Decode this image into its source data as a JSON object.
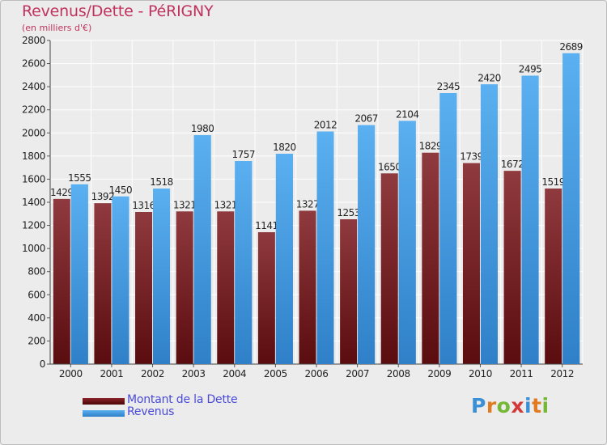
{
  "title": "Revenus/Dette - PéRIGNY",
  "subtitle": "(en milliers d'€)",
  "colors": {
    "debt": "#7a2a2e",
    "revenue": "#4aa3e8",
    "title": "#c0335f",
    "legend_text": "#4a4ad8"
  },
  "legend": [
    {
      "label": "Montant de la Dette",
      "color": "#6e0e10"
    },
    {
      "label": "Revenus",
      "color": "#4aa3e8"
    }
  ],
  "logo": {
    "text": "Proxiti",
    "parts": [
      "P",
      "r",
      "o",
      "x",
      "i",
      "t",
      "i"
    ]
  },
  "chart_data": {
    "type": "bar",
    "title": "Revenus/Dette - PéRIGNY",
    "subtitle": "(en milliers d'€)",
    "categories": [
      "2000",
      "2001",
      "2002",
      "2003",
      "2004",
      "2005",
      "2006",
      "2007",
      "2008",
      "2009",
      "2010",
      "2011",
      "2012"
    ],
    "series": [
      {
        "name": "Montant de la Dette",
        "values": [
          1429,
          1392,
          1316,
          1321,
          1321,
          1141,
          1327,
          1253,
          1650,
          1829,
          1739,
          1672,
          1519
        ]
      },
      {
        "name": "Revenus",
        "values": [
          1555,
          1450,
          1518,
          1980,
          1757,
          1820,
          2012,
          2067,
          2104,
          2345,
          2420,
          2495,
          2689
        ]
      }
    ],
    "ylim": [
      0,
      2800
    ],
    "yticks": [
      0,
      200,
      400,
      600,
      800,
      1000,
      1200,
      1400,
      1600,
      1800,
      2000,
      2200,
      2400,
      2600,
      2800
    ],
    "grid": true,
    "legend_position": "bottom-left"
  }
}
